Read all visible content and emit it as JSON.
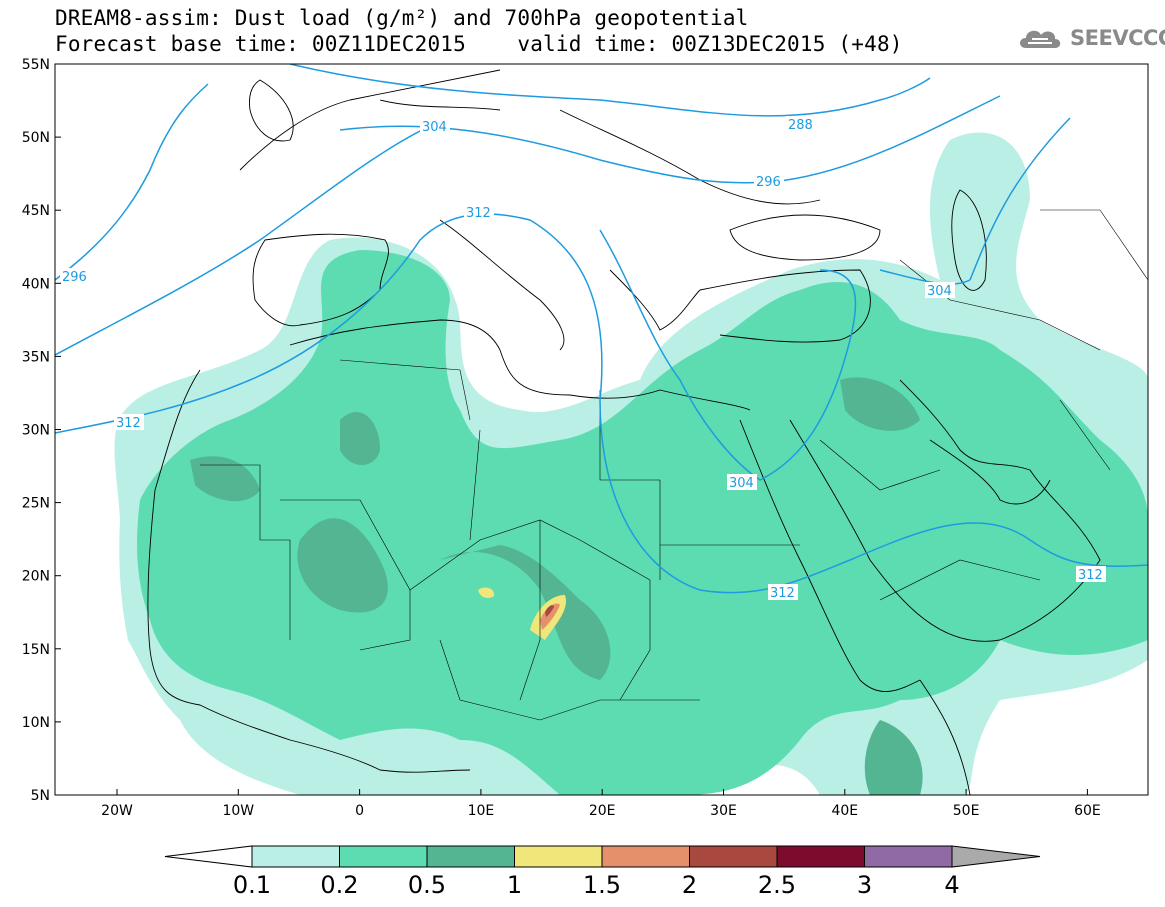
{
  "header": {
    "title_line1": "DREAM8-assim: Dust load (g/m²) and 700hPa geopotential",
    "title_line2": "Forecast base time: 00Z11DEC2015    valid time: 00Z13DEC2015 (+48)",
    "logo_text": "SEEVCCC"
  },
  "map": {
    "lat_labels": [
      "55N",
      "50N",
      "45N",
      "40N",
      "35N",
      "30N",
      "25N",
      "20N",
      "15N",
      "10N",
      "5N"
    ],
    "lon_labels": [
      "20W",
      "10W",
      "0",
      "10E",
      "20E",
      "30E",
      "40E",
      "50E",
      "60E"
    ],
    "contour_labels": [
      "288",
      "296",
      "296",
      "304",
      "304",
      "304",
      "312",
      "312",
      "312",
      "312"
    ],
    "colors": {
      "contour_line": "#1e9be0",
      "dust_0_1": "#b9efe5",
      "dust_0_2": "#5ddcb2",
      "dust_0_5": "#53b591",
      "dust_1": "#f0e67a",
      "dust_1_5": "#e5906b",
      "dust_2": "#a9483f"
    }
  },
  "colorbar": {
    "tick_labels": [
      "0.1",
      "0.2",
      "0.5",
      "1",
      "1.5",
      "2",
      "2.5",
      "3",
      "4"
    ],
    "colors": [
      "#ffffff",
      "#b9efe5",
      "#5ddcb2",
      "#53b591",
      "#f0e67a",
      "#e5906b",
      "#a9483f",
      "#7d0b2d",
      "#8f6aa4",
      "#aaaaaa"
    ]
  }
}
